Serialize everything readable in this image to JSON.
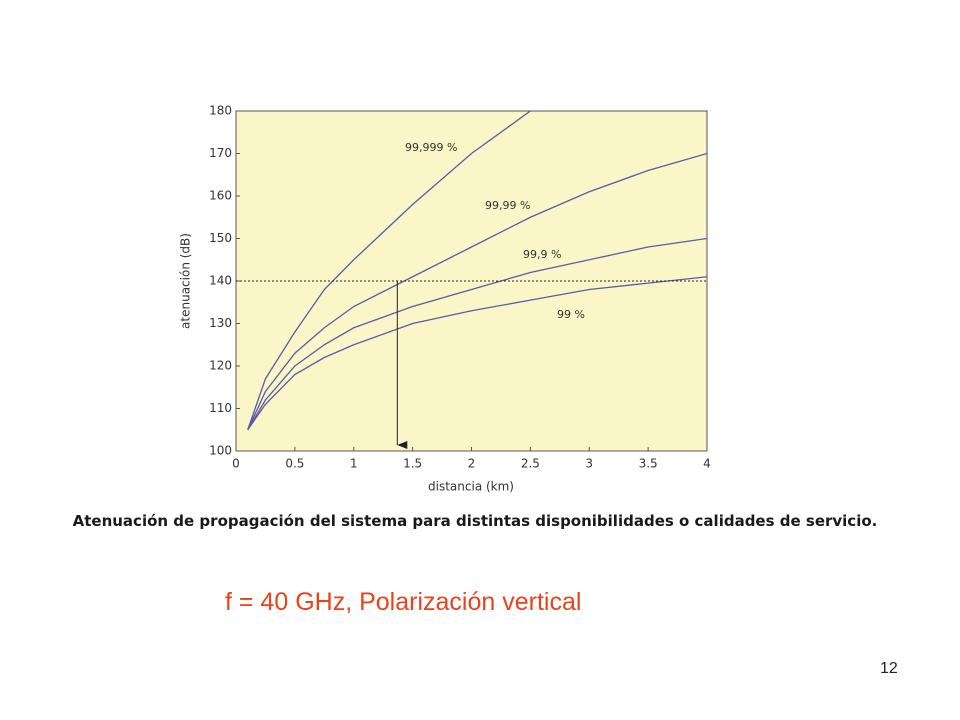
{
  "chart_data": {
    "type": "line",
    "xlabel": "distancia (km)",
    "ylabel": "atenuación (dB)",
    "x": [
      0.1,
      0.25,
      0.5,
      0.75,
      1,
      1.5,
      2,
      2.5,
      3,
      3.5,
      4
    ],
    "series": [
      {
        "name": "99,999 %",
        "color": "#5b5ba8",
        "values": [
          105,
          117,
          128,
          138,
          145,
          158,
          170,
          180,
          null,
          null,
          null
        ]
      },
      {
        "name": "99,99 %",
        "color": "#5b5ba8",
        "values": [
          105,
          114,
          123,
          129,
          134,
          141,
          148,
          155,
          161,
          166,
          170
        ]
      },
      {
        "name": "99,9 %",
        "color": "#5b5ba8",
        "values": [
          105,
          112,
          120,
          125,
          129,
          134,
          138,
          142,
          145,
          148,
          150
        ]
      },
      {
        "name": "99 %",
        "color": "#5b5ba8",
        "values": [
          105,
          111,
          118,
          122,
          125,
          130,
          133,
          135.5,
          138,
          139.5,
          141
        ]
      }
    ],
    "hline": 140,
    "arrow_x": 1.37,
    "xlim": [
      0,
      4
    ],
    "xticks": [
      0,
      0.5,
      1,
      1.5,
      2,
      2.5,
      3,
      3.5,
      4
    ],
    "ylim": [
      100,
      180
    ],
    "yticks": [
      100,
      110,
      120,
      130,
      140,
      150,
      160,
      170,
      180
    ],
    "caption": "Atenuación de propagación del sistema para distintas disponibilidades o calidades de servicio.",
    "subtitle": "f = 40 GHz, Polarización vertical",
    "page_number": "12"
  }
}
